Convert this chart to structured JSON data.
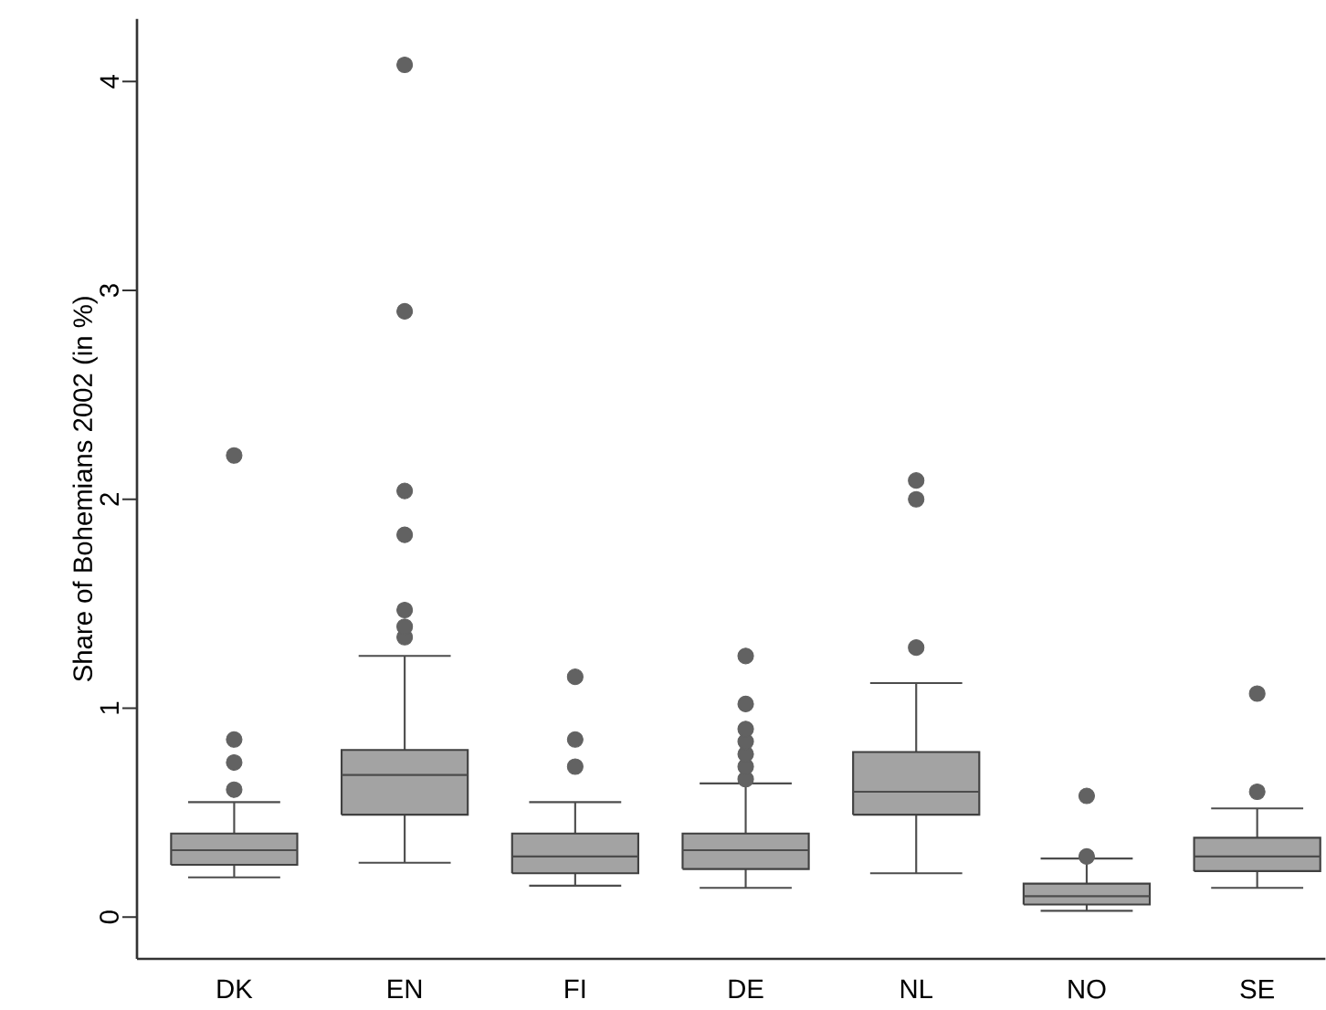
{
  "chart_data": {
    "type": "box",
    "ylabel": "Share of Bohemians 2002 (in %)",
    "categories": [
      "DK",
      "EN",
      "FI",
      "DE",
      "NL",
      "NO",
      "SE"
    ],
    "boxes": [
      {
        "low": 0.19,
        "q1": 0.25,
        "median": 0.32,
        "q3": 0.4,
        "high": 0.55,
        "outliers": [
          0.61,
          0.74,
          0.85,
          2.21
        ]
      },
      {
        "low": 0.26,
        "q1": 0.49,
        "median": 0.68,
        "q3": 0.8,
        "high": 1.25,
        "outliers": [
          1.34,
          1.39,
          1.47,
          1.83,
          2.04,
          2.9,
          4.08
        ]
      },
      {
        "low": 0.15,
        "q1": 0.21,
        "median": 0.29,
        "q3": 0.4,
        "high": 0.55,
        "outliers": [
          0.72,
          0.85,
          1.15
        ]
      },
      {
        "low": 0.14,
        "q1": 0.23,
        "median": 0.32,
        "q3": 0.4,
        "high": 0.64,
        "outliers": [
          0.66,
          0.72,
          0.78,
          0.84,
          0.9,
          1.02,
          1.25
        ]
      },
      {
        "low": 0.21,
        "q1": 0.49,
        "median": 0.6,
        "q3": 0.79,
        "high": 1.12,
        "outliers": [
          1.29,
          2.0,
          2.09
        ]
      },
      {
        "low": 0.03,
        "q1": 0.06,
        "median": 0.1,
        "q3": 0.16,
        "high": 0.28,
        "outliers": [
          0.29,
          0.58
        ]
      },
      {
        "low": 0.14,
        "q1": 0.22,
        "median": 0.29,
        "q3": 0.38,
        "high": 0.52,
        "outliers": [
          0.6,
          1.07
        ]
      }
    ],
    "color": "#a3a3a3",
    "ylim": [
      -0.2,
      4.3
    ],
    "yticks": [
      0,
      1,
      2,
      3,
      4
    ],
    "grid": false
  }
}
